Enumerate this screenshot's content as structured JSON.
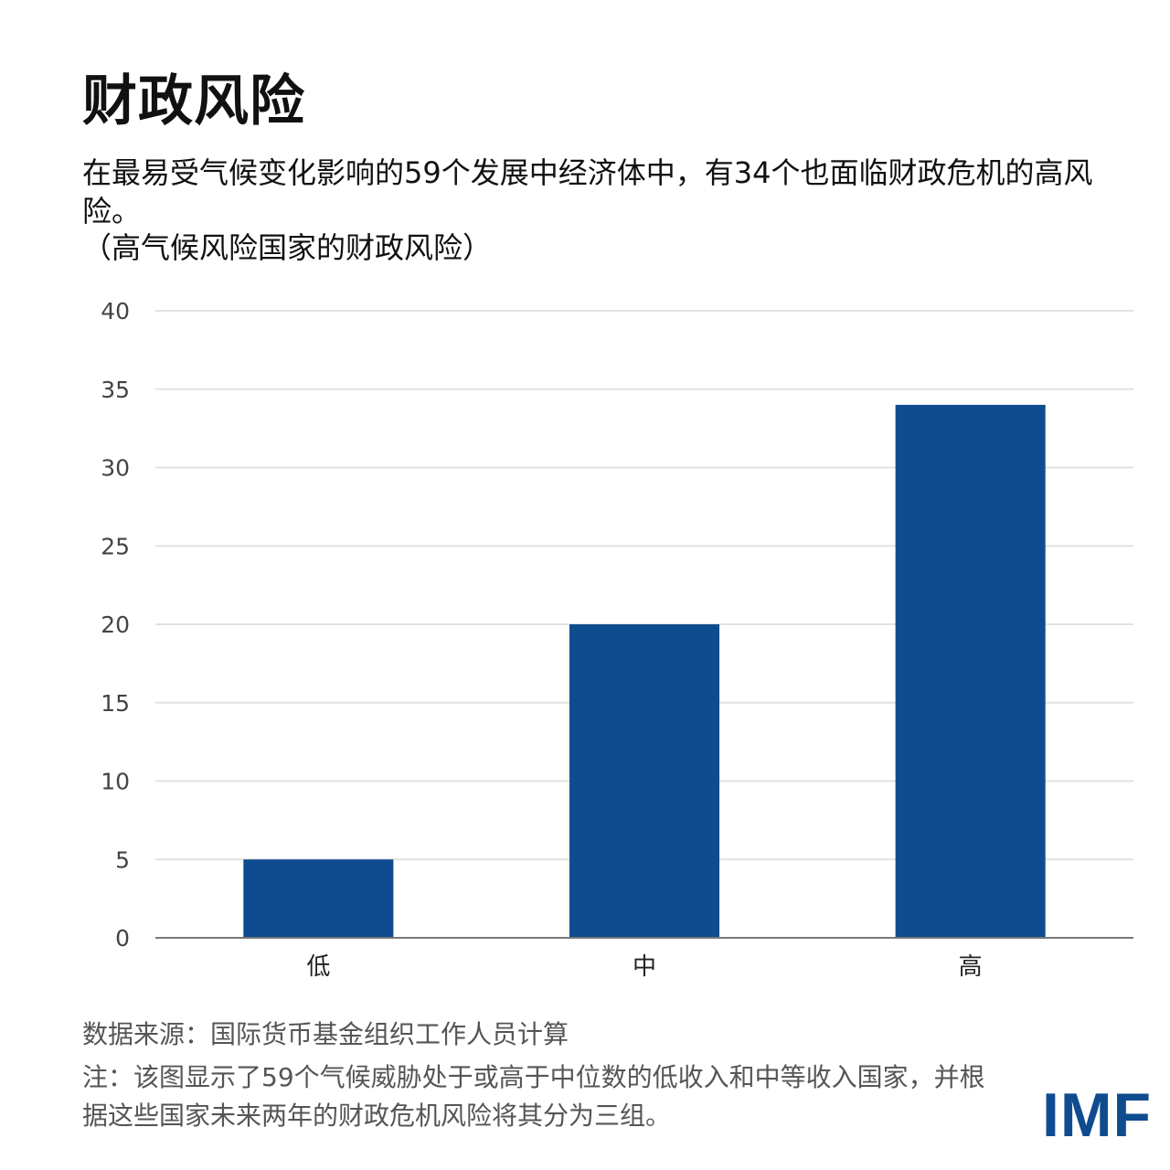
{
  "header": {
    "title": "财政风险",
    "subtitle": "在最易受气候变化影响的59个发展中经济体中，有34个也面临财政危机的高风险。",
    "paren_label": "（高气候风险国家的财政风险）"
  },
  "chart_data": {
    "type": "bar",
    "categories": [
      "低",
      "中",
      "高"
    ],
    "values": [
      5,
      20,
      34
    ],
    "ylim": [
      0,
      40
    ],
    "yticks": [
      "0",
      "5",
      "10",
      "15",
      "20",
      "25",
      "30",
      "35",
      "40"
    ],
    "grid": true,
    "bar_color": "#0f4c8f"
  },
  "footer": {
    "source": "数据来源：国际货币基金组织工作人员计算",
    "note": "注：该图显示了59个气候威胁处于或高于中位数的低收入和中等收入国家，并根据这些国家未来两年的财政危机风险将其分为三组。"
  },
  "logo": {
    "text": "IMF",
    "color": "#0f4c8f"
  }
}
